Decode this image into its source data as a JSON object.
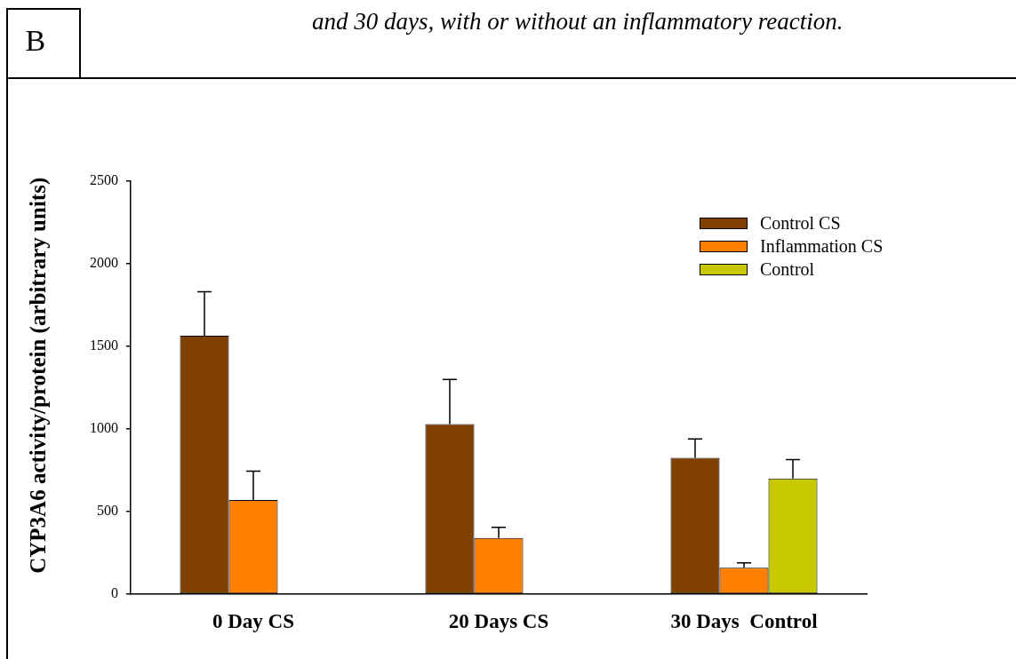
{
  "chart_data": {
    "type": "bar",
    "title": "and 30 days, with or without an inflammatory reaction.",
    "ylabel": "CYP3A6 activity/protein (arbitrary units)",
    "annotations": [
      "B"
    ],
    "categories": [
      "0 Day CS",
      "20 Days CS",
      "30 Days  Control"
    ],
    "series": [
      {
        "name": "Control CS",
        "color": "#804000",
        "values": [
          1565,
          1030,
          825
        ],
        "errors": [
          [
            1565,
            1830
          ],
          [
            1030,
            1300
          ],
          [
            825,
            940
          ]
        ]
      },
      {
        "name": "Inflammation CS",
        "color": "#ff8000",
        "values": [
          570,
          340,
          160
        ],
        "errors": [
          [
            570,
            745
          ],
          [
            340,
            405
          ],
          [
            160,
            190
          ]
        ]
      },
      {
        "name": "Control",
        "color": "#c8c800",
        "values": [
          null,
          null,
          700
        ],
        "errors": [
          null,
          null,
          [
            700,
            815
          ]
        ]
      }
    ],
    "ylim": [
      0,
      2500
    ],
    "yticks": [
      0,
      500,
      1000,
      1500,
      2000,
      2500
    ],
    "legend": "top right"
  }
}
